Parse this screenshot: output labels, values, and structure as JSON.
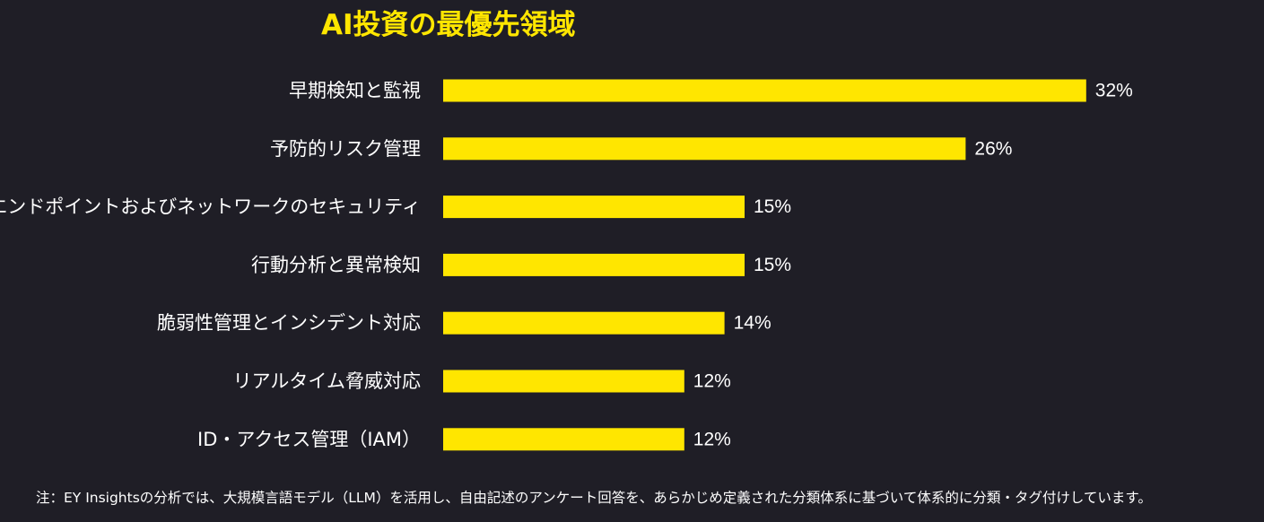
{
  "chart_data": {
    "type": "bar",
    "orientation": "horizontal",
    "title": "AI投資の最優先領域",
    "categories": [
      "早期検知と監視",
      "予防的リスク管理",
      "エンドポイントおよびネットワークのセキュリティ",
      "行動分析と異常検知",
      "脆弱性管理とインシデント対応",
      "リアルタイム脅威対応",
      "ID・アクセス管理（IAM）"
    ],
    "values": [
      32,
      26,
      15,
      15,
      14,
      12,
      12
    ],
    "value_labels": [
      "32%",
      "26%",
      "15%",
      "15%",
      "14%",
      "12%",
      "12%"
    ],
    "unit": "%",
    "bar_color": "#ffe600",
    "background_color": "#1f1e26",
    "grid": false,
    "legend": "none"
  },
  "footnote": "注：EY Insightsの分析では、大規模言語モデル（LLM）を活用し、自由記述のアンケート回答を、あらかじめ定義された分類体系に基づいて体系的に分類・タグ付けしています。"
}
